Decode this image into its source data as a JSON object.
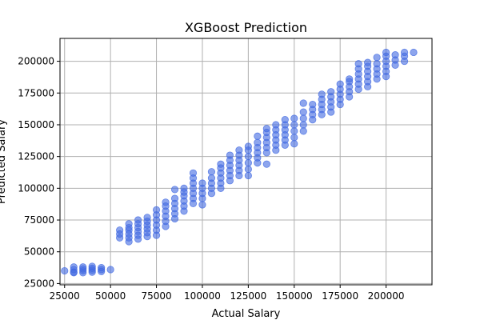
{
  "chart_data": {
    "type": "scatter",
    "title": "XGBoost Prediction",
    "xlabel": "Actual Salary",
    "ylabel": "Predicted Salary",
    "xlim": [
      22500,
      225000
    ],
    "ylim": [
      24000,
      218000
    ],
    "xticks": [
      25000,
      50000,
      75000,
      100000,
      125000,
      150000,
      175000,
      200000
    ],
    "yticks": [
      25000,
      50000,
      75000,
      100000,
      125000,
      150000,
      175000,
      200000
    ],
    "grid": true,
    "marker_color": "#4169e1",
    "marker_opacity": 0.6,
    "series": [
      {
        "points": [
          [
            25000,
            35000
          ],
          [
            30000,
            34000
          ],
          [
            30000,
            36000
          ],
          [
            30000,
            38000
          ],
          [
            30000,
            33500
          ],
          [
            35000,
            33500
          ],
          [
            35000,
            35000
          ],
          [
            35000,
            36500
          ],
          [
            35000,
            38000
          ],
          [
            40000,
            34000
          ],
          [
            40000,
            35500
          ],
          [
            40000,
            37000
          ],
          [
            40000,
            38500
          ],
          [
            45000,
            34500
          ],
          [
            45000,
            36000
          ],
          [
            45000,
            37500
          ],
          [
            50000,
            36000
          ],
          [
            55000,
            61000
          ],
          [
            55000,
            64000
          ],
          [
            55000,
            67000
          ],
          [
            60000,
            58000
          ],
          [
            60000,
            61000
          ],
          [
            60000,
            64000
          ],
          [
            60000,
            67000
          ],
          [
            60000,
            69000
          ],
          [
            60000,
            72000
          ],
          [
            65000,
            60000
          ],
          [
            65000,
            63000
          ],
          [
            65000,
            66000
          ],
          [
            65000,
            69000
          ],
          [
            65000,
            72000
          ],
          [
            65000,
            75000
          ],
          [
            70000,
            62000
          ],
          [
            70000,
            65000
          ],
          [
            70000,
            68000
          ],
          [
            70000,
            71000
          ],
          [
            70000,
            74000
          ],
          [
            70000,
            77000
          ],
          [
            75000,
            63000
          ],
          [
            75000,
            67000
          ],
          [
            75000,
            71000
          ],
          [
            75000,
            75000
          ],
          [
            75000,
            79000
          ],
          [
            75000,
            83000
          ],
          [
            80000,
            70000
          ],
          [
            80000,
            74000
          ],
          [
            80000,
            78000
          ],
          [
            80000,
            82000
          ],
          [
            80000,
            86000
          ],
          [
            80000,
            89000
          ],
          [
            85000,
            76000
          ],
          [
            85000,
            80000
          ],
          [
            85000,
            84000
          ],
          [
            85000,
            88000
          ],
          [
            85000,
            92000
          ],
          [
            85000,
            99000
          ],
          [
            90000,
            82000
          ],
          [
            90000,
            86000
          ],
          [
            90000,
            90000
          ],
          [
            90000,
            94000
          ],
          [
            90000,
            97000
          ],
          [
            90000,
            100000
          ],
          [
            95000,
            88000
          ],
          [
            95000,
            92000
          ],
          [
            95000,
            96000
          ],
          [
            95000,
            100000
          ],
          [
            95000,
            104000
          ],
          [
            95000,
            108000
          ],
          [
            95000,
            112000
          ],
          [
            100000,
            87000
          ],
          [
            100000,
            92000
          ],
          [
            100000,
            96000
          ],
          [
            100000,
            100000
          ],
          [
            100000,
            104000
          ],
          [
            105000,
            96000
          ],
          [
            105000,
            100000
          ],
          [
            105000,
            104000
          ],
          [
            105000,
            108000
          ],
          [
            105000,
            113000
          ],
          [
            110000,
            100000
          ],
          [
            110000,
            104000
          ],
          [
            110000,
            108000
          ],
          [
            110000,
            112000
          ],
          [
            110000,
            116000
          ],
          [
            110000,
            119000
          ],
          [
            115000,
            106000
          ],
          [
            115000,
            110000
          ],
          [
            115000,
            114000
          ],
          [
            115000,
            118000
          ],
          [
            115000,
            122000
          ],
          [
            115000,
            126000
          ],
          [
            120000,
            110000
          ],
          [
            120000,
            114000
          ],
          [
            120000,
            118000
          ],
          [
            120000,
            122000
          ],
          [
            120000,
            126000
          ],
          [
            120000,
            130000
          ],
          [
            125000,
            110000
          ],
          [
            125000,
            115000
          ],
          [
            125000,
            120000
          ],
          [
            125000,
            125000
          ],
          [
            125000,
            130000
          ],
          [
            125000,
            133000
          ],
          [
            130000,
            120000
          ],
          [
            130000,
            124000
          ],
          [
            130000,
            128000
          ],
          [
            130000,
            132000
          ],
          [
            130000,
            136000
          ],
          [
            130000,
            141000
          ],
          [
            135000,
            119000
          ],
          [
            135000,
            128000
          ],
          [
            135000,
            132000
          ],
          [
            135000,
            136000
          ],
          [
            135000,
            140000
          ],
          [
            135000,
            144000
          ],
          [
            135000,
            147000
          ],
          [
            140000,
            130000
          ],
          [
            140000,
            134000
          ],
          [
            140000,
            138000
          ],
          [
            140000,
            142000
          ],
          [
            140000,
            146000
          ],
          [
            140000,
            150000
          ],
          [
            145000,
            134000
          ],
          [
            145000,
            138000
          ],
          [
            145000,
            142000
          ],
          [
            145000,
            146000
          ],
          [
            145000,
            150000
          ],
          [
            145000,
            154000
          ],
          [
            150000,
            135000
          ],
          [
            150000,
            140000
          ],
          [
            150000,
            145000
          ],
          [
            150000,
            150000
          ],
          [
            150000,
            155000
          ],
          [
            155000,
            145000
          ],
          [
            155000,
            150000
          ],
          [
            155000,
            155000
          ],
          [
            155000,
            160000
          ],
          [
            155000,
            167000
          ],
          [
            160000,
            154000
          ],
          [
            160000,
            158000
          ],
          [
            160000,
            162000
          ],
          [
            160000,
            166000
          ],
          [
            165000,
            158000
          ],
          [
            165000,
            162000
          ],
          [
            165000,
            166000
          ],
          [
            165000,
            170000
          ],
          [
            165000,
            174000
          ],
          [
            170000,
            160000
          ],
          [
            170000,
            164000
          ],
          [
            170000,
            168000
          ],
          [
            170000,
            172000
          ],
          [
            170000,
            176000
          ],
          [
            175000,
            166000
          ],
          [
            175000,
            170000
          ],
          [
            175000,
            174000
          ],
          [
            175000,
            178000
          ],
          [
            175000,
            182000
          ],
          [
            180000,
            172000
          ],
          [
            180000,
            176000
          ],
          [
            180000,
            180000
          ],
          [
            180000,
            184000
          ],
          [
            180000,
            186000
          ],
          [
            185000,
            178000
          ],
          [
            185000,
            182000
          ],
          [
            185000,
            186000
          ],
          [
            185000,
            190000
          ],
          [
            185000,
            194000
          ],
          [
            185000,
            198000
          ],
          [
            190000,
            180000
          ],
          [
            190000,
            184000
          ],
          [
            190000,
            188000
          ],
          [
            190000,
            192000
          ],
          [
            190000,
            196000
          ],
          [
            190000,
            199000
          ],
          [
            195000,
            186000
          ],
          [
            195000,
            190000
          ],
          [
            195000,
            194000
          ],
          [
            195000,
            198000
          ],
          [
            195000,
            203000
          ],
          [
            200000,
            188000
          ],
          [
            200000,
            192000
          ],
          [
            200000,
            196000
          ],
          [
            200000,
            200000
          ],
          [
            200000,
            204000
          ],
          [
            200000,
            207000
          ],
          [
            205000,
            197000
          ],
          [
            205000,
            201000
          ],
          [
            205000,
            205000
          ],
          [
            210000,
            200000
          ],
          [
            210000,
            204000
          ],
          [
            210000,
            207000
          ],
          [
            215000,
            207000
          ]
        ]
      }
    ]
  }
}
